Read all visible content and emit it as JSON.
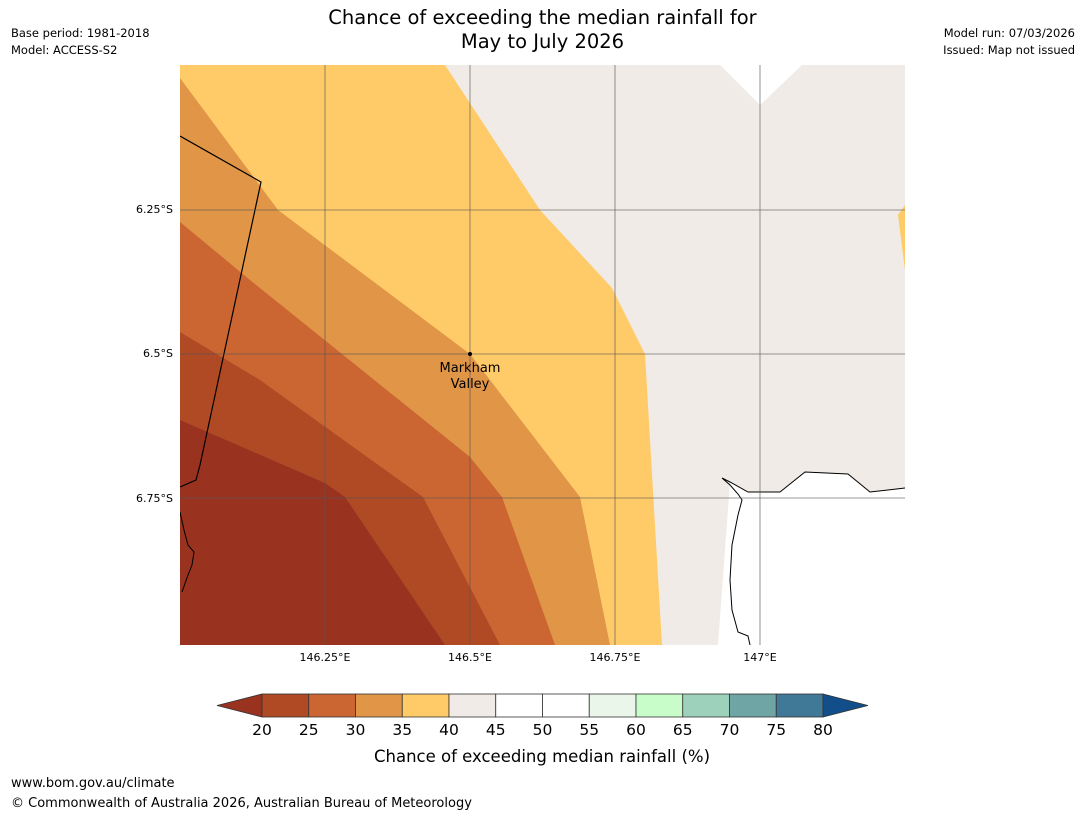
{
  "title_line1": "Chance of exceeding the median rainfall for",
  "title_line2": "May to July 2026",
  "meta_left": {
    "base_period": "Base period: 1981-2018",
    "model": "Model: ACCESS-S2"
  },
  "meta_right": {
    "model_run": "Model run: 07/03/2026",
    "issued": "Issued: Map not issued"
  },
  "map": {
    "place": {
      "name_line1": "Markham",
      "name_line2": "Valley",
      "lon": 146.5,
      "lat": -6.5
    },
    "lat_ticks": [
      {
        "label": "6.25°S",
        "value": -6.25
      },
      {
        "label": "6.5°S",
        "value": -6.5
      },
      {
        "label": "6.75°S",
        "value": -6.75
      }
    ],
    "lon_ticks": [
      {
        "label": "146.25°E",
        "value": 146.25
      },
      {
        "label": "146.5°E",
        "value": 146.5
      },
      {
        "label": "146.75°E",
        "value": 146.75
      },
      {
        "label": "147°E",
        "value": 147.0
      }
    ]
  },
  "colorbar": {
    "title": "Chance of exceeding median rainfall (%)",
    "ticks": [
      "20",
      "25",
      "30",
      "35",
      "40",
      "45",
      "50",
      "55",
      "60",
      "65",
      "70",
      "75",
      "80"
    ],
    "under_color": "#993320",
    "over_color": "#124f8a",
    "colors": [
      "#b04a25",
      "#cb6633",
      "#e09547",
      "#ffcb69",
      "#f0ebe6",
      "#ffffff",
      "#ffffff",
      "#eaf6e9",
      "#c8fcc8",
      "#9dd1bb",
      "#6fa5a5",
      "#3f7997"
    ]
  },
  "footer": {
    "url": "www.bom.gov.au/climate",
    "copyright": "© Commonwealth of Australia 2026, Australian Bureau of Meteorology"
  }
}
